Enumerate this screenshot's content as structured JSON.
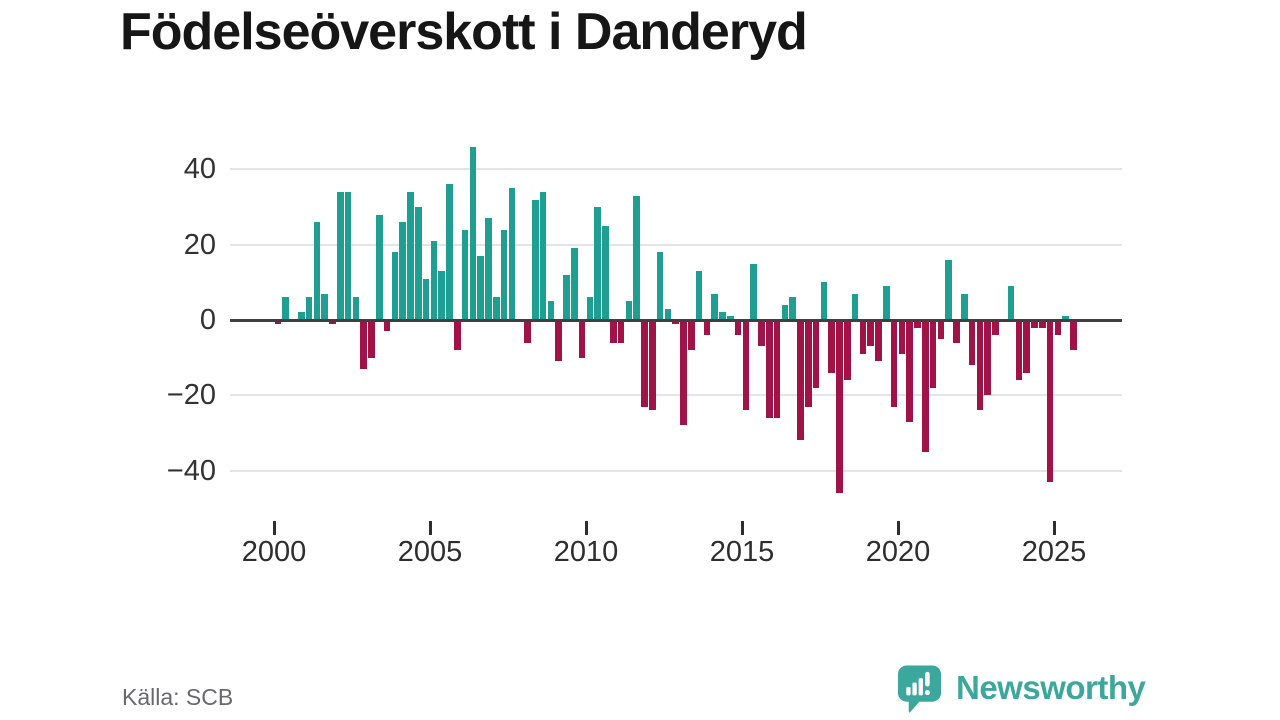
{
  "title": "Födelseöverskott i Danderyd",
  "source": "Källa: SCB",
  "brand": {
    "name": "Newsworthy",
    "color": "#3ba79d"
  },
  "colors": {
    "positive_bar": "#1f9e92",
    "negative_bar": "#a11246",
    "zero_axis": "#3f3f3f",
    "gridline": "#e4e4e4",
    "axis_text": "#323232",
    "title_text": "#161616",
    "source_text": "#68686d"
  },
  "chart_data": {
    "type": "bar",
    "title": "Födelseöverskott i Danderyd",
    "frequency": "quarterly",
    "start_period": "2000-Q1",
    "end_period": "2025-Q3",
    "values": [
      -1,
      6,
      0,
      2,
      6,
      26,
      7,
      -1,
      34,
      34,
      6,
      -13,
      -10,
      28,
      -3,
      18,
      26,
      34,
      30,
      11,
      21,
      13,
      36,
      -8,
      24,
      46,
      17,
      27,
      6,
      24,
      35,
      0,
      -6,
      32,
      34,
      5,
      -11,
      12,
      19,
      -10,
      6,
      30,
      25,
      -6,
      -6,
      5,
      33,
      -23,
      -24,
      18,
      3,
      -1,
      -28,
      -8,
      13,
      -4,
      7,
      2,
      1,
      -4,
      -24,
      15,
      -7,
      -26,
      -26,
      4,
      6,
      -32,
      -23,
      -18,
      10,
      -14,
      -46,
      -16,
      7,
      -9,
      -7,
      -11,
      9,
      -23,
      -9,
      -27,
      -2,
      -35,
      -18,
      -5,
      16,
      -6,
      7,
      -12,
      -24,
      -20,
      -4,
      0,
      9,
      -16,
      -14,
      -2,
      -2,
      -43,
      -4,
      1,
      -8
    ],
    "x_tick_labels": [
      "2000",
      "2005",
      "2010",
      "2015",
      "2020",
      "2025"
    ],
    "y_tick_labels": [
      "40",
      "20",
      "0",
      "−20",
      "−40"
    ],
    "y_tick_values": [
      40,
      20,
      0,
      -20,
      -40
    ],
    "ylim": [
      -50,
      50
    ],
    "grid": "horizontal",
    "legend": "none",
    "positive_color": "#1f9e92",
    "negative_color": "#a11246"
  }
}
